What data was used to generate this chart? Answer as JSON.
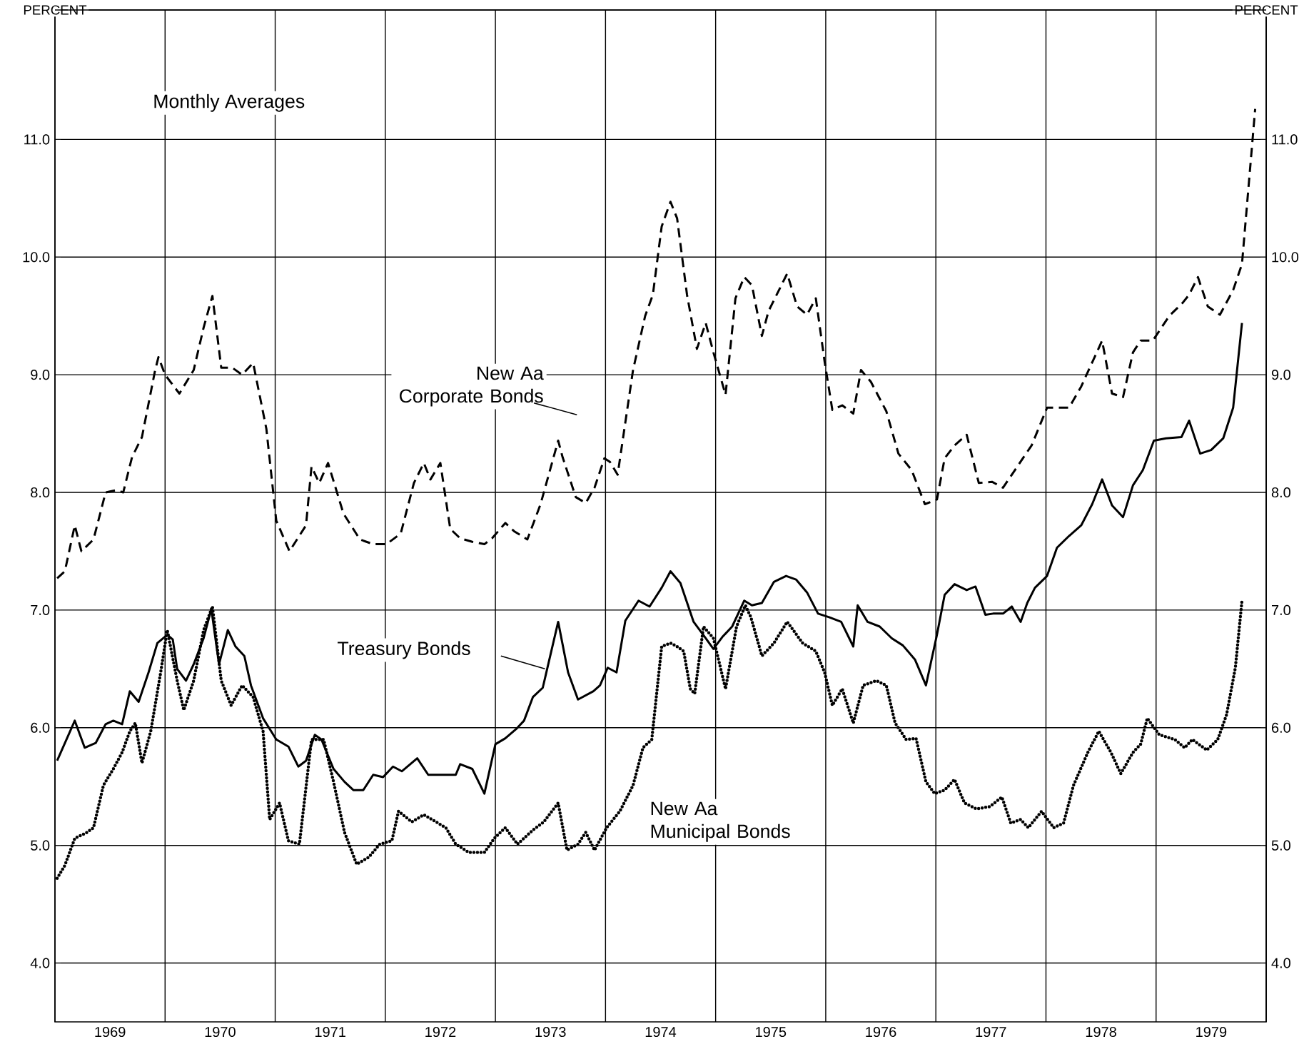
{
  "chart_data": {
    "type": "line",
    "ylabel": "PERCENT",
    "y2label": "PERCENT",
    "annotations": [
      "Monthly Averages"
    ],
    "xlim": [
      1969,
      1980
    ],
    "ylim": [
      3.5,
      12.1
    ],
    "y2lim": [
      3.5,
      12.1
    ],
    "xticks": [
      {
        "value": 1969,
        "label": null
      },
      {
        "value": 1969.5,
        "label": "1969"
      },
      {
        "value": 1970,
        "label": null
      },
      {
        "value": 1970.5,
        "label": "1970"
      },
      {
        "value": 1971,
        "label": null
      },
      {
        "value": 1971.5,
        "label": "1971"
      },
      {
        "value": 1972,
        "label": null
      },
      {
        "value": 1972.5,
        "label": "1972"
      },
      {
        "value": 1973,
        "label": null
      },
      {
        "value": 1973.5,
        "label": "1973"
      },
      {
        "value": 1974,
        "label": null
      },
      {
        "value": 1974.5,
        "label": "1974"
      },
      {
        "value": 1975,
        "label": null
      },
      {
        "value": 1975.5,
        "label": "1975"
      },
      {
        "value": 1976,
        "label": null
      },
      {
        "value": 1976.5,
        "label": "1976"
      },
      {
        "value": 1977,
        "label": null
      },
      {
        "value": 1977.5,
        "label": "1977"
      },
      {
        "value": 1978,
        "label": null
      },
      {
        "value": 1978.5,
        "label": "1978"
      },
      {
        "value": 1979,
        "label": null
      },
      {
        "value": 1979.5,
        "label": "1979"
      },
      {
        "value": 1980,
        "label": null
      }
    ],
    "yticks": [
      {
        "value": 4,
        "label": "4.0"
      },
      {
        "value": 5,
        "label": "5.0"
      },
      {
        "value": 6,
        "label": "6.0"
      },
      {
        "value": 7,
        "label": "7.0"
      },
      {
        "value": 8,
        "label": "8.0"
      },
      {
        "value": 9,
        "label": "9.0"
      },
      {
        "value": 10,
        "label": "10.0"
      },
      {
        "value": 11,
        "label": "11.0"
      }
    ],
    "y2ticks": [
      {
        "value": 4,
        "label": "4.0"
      },
      {
        "value": 5,
        "label": "5.0"
      },
      {
        "value": 6,
        "label": "6.0"
      },
      {
        "value": 7,
        "label": "7.0"
      },
      {
        "value": 8,
        "label": "8.0"
      },
      {
        "value": 9,
        "label": "9.0"
      },
      {
        "value": 10,
        "label": "10.0"
      },
      {
        "value": 11,
        "label": "11.0"
      }
    ],
    "grid": true,
    "series": [
      {
        "name": "New Aa Corporate Bonds",
        "color": "#000000",
        "line_style": "dashed",
        "x": [
          1969.02,
          1969.09,
          1969.18,
          1969.24,
          1969.35,
          1969.46,
          1969.56,
          1969.62,
          1969.7,
          1969.79,
          1969.91,
          1969.94,
          1970.0,
          1970.13,
          1970.26,
          1970.35,
          1970.43,
          1970.51,
          1970.61,
          1970.7,
          1970.8,
          1970.92,
          1971.01,
          1971.13,
          1971.28,
          1971.33,
          1971.4,
          1971.48,
          1971.62,
          1971.77,
          1971.89,
          1972.01,
          1972.14,
          1972.26,
          1972.35,
          1972.41,
          1972.5,
          1972.59,
          1972.68,
          1972.79,
          1972.9,
          1972.97,
          1973.09,
          1973.17,
          1973.29,
          1973.41,
          1973.57,
          1973.61,
          1973.73,
          1973.82,
          1973.9,
          1973.99,
          1974.04,
          1974.11,
          1974.25,
          1974.36,
          1974.43,
          1974.51,
          1974.59,
          1974.65,
          1974.74,
          1974.83,
          1974.91,
          1974.98,
          1975.09,
          1975.18,
          1975.26,
          1975.33,
          1975.42,
          1975.48,
          1975.65,
          1975.74,
          1975.83,
          1975.91,
          1975.99,
          1976.06,
          1976.15,
          1976.25,
          1976.32,
          1976.41,
          1976.55,
          1976.66,
          1976.78,
          1976.9,
          1977.01,
          1977.08,
          1977.17,
          1977.28,
          1977.39,
          1977.51,
          1977.61,
          1977.74,
          1977.87,
          1978.01,
          1978.21,
          1978.32,
          1978.51,
          1978.6,
          1978.7,
          1978.79,
          1978.86,
          1978.97,
          1979.12,
          1979.24,
          1979.3,
          1979.38,
          1979.47,
          1979.58,
          1979.7,
          1979.78,
          1979.9
        ],
        "values": [
          7.27,
          7.33,
          7.72,
          7.5,
          7.6,
          8.0,
          8.02,
          8.0,
          8.3,
          8.47,
          9.04,
          9.15,
          9.0,
          8.84,
          9.04,
          9.4,
          9.67,
          9.06,
          9.06,
          9.0,
          9.1,
          8.54,
          7.76,
          7.5,
          7.72,
          8.22,
          8.08,
          8.25,
          7.82,
          7.6,
          7.56,
          7.56,
          7.65,
          8.08,
          8.25,
          8.11,
          8.25,
          7.69,
          7.61,
          7.58,
          7.56,
          7.61,
          7.74,
          7.67,
          7.6,
          7.9,
          8.44,
          8.3,
          7.96,
          7.91,
          8.04,
          8.29,
          8.26,
          8.15,
          9.04,
          9.5,
          9.68,
          10.26,
          10.47,
          10.33,
          9.68,
          9.22,
          9.44,
          9.19,
          8.83,
          9.65,
          9.83,
          9.76,
          9.33,
          9.54,
          9.86,
          9.58,
          9.51,
          9.65,
          9.11,
          8.7,
          8.74,
          8.67,
          9.04,
          8.94,
          8.69,
          8.33,
          8.19,
          7.9,
          7.94,
          8.29,
          8.4,
          8.49,
          8.08,
          8.09,
          8.04,
          8.22,
          8.4,
          8.72,
          8.72,
          8.9,
          9.29,
          8.84,
          8.81,
          9.19,
          9.29,
          9.29,
          9.5,
          9.61,
          9.68,
          9.83,
          9.58,
          9.51,
          9.72,
          9.94,
          11.26
        ]
      },
      {
        "name": "Treasury Bonds",
        "color": "#000000",
        "line_style": "solid",
        "x": [
          1969.02,
          1969.18,
          1969.27,
          1969.37,
          1969.46,
          1969.53,
          1969.61,
          1969.68,
          1969.76,
          1969.85,
          1969.93,
          1970.02,
          1970.07,
          1970.11,
          1970.19,
          1970.26,
          1970.35,
          1970.42,
          1970.49,
          1970.57,
          1970.64,
          1970.72,
          1970.78,
          1970.89,
          1971.01,
          1971.12,
          1971.21,
          1971.28,
          1971.36,
          1971.42,
          1971.53,
          1971.63,
          1971.71,
          1971.8,
          1971.89,
          1971.98,
          1972.07,
          1972.15,
          1972.29,
          1972.39,
          1972.5,
          1972.64,
          1972.68,
          1972.79,
          1972.9,
          1973.0,
          1973.09,
          1973.19,
          1973.26,
          1973.34,
          1973.43,
          1973.57,
          1973.66,
          1973.75,
          1973.89,
          1973.95,
          1974.02,
          1974.1,
          1974.18,
          1974.3,
          1974.4,
          1974.51,
          1974.59,
          1974.68,
          1974.8,
          1974.91,
          1974.98,
          1975.06,
          1975.15,
          1975.26,
          1975.33,
          1975.42,
          1975.53,
          1975.64,
          1975.73,
          1975.83,
          1975.93,
          1976.03,
          1976.14,
          1976.25,
          1976.29,
          1976.38,
          1976.49,
          1976.6,
          1976.7,
          1976.81,
          1976.91,
          1977.01,
          1977.08,
          1977.17,
          1977.28,
          1977.36,
          1977.45,
          1977.52,
          1977.61,
          1977.69,
          1977.77,
          1977.83,
          1977.9,
          1978.01,
          1978.1,
          1978.21,
          1978.32,
          1978.42,
          1978.51,
          1978.6,
          1978.7,
          1978.79,
          1978.88,
          1978.98,
          1979.09,
          1979.23,
          1979.3,
          1979.4,
          1979.5,
          1979.61,
          1979.7,
          1979.78
        ],
        "values": [
          5.72,
          6.06,
          5.83,
          5.87,
          6.03,
          6.06,
          6.03,
          6.31,
          6.22,
          6.47,
          6.72,
          6.79,
          6.75,
          6.5,
          6.4,
          6.54,
          6.76,
          7.01,
          6.54,
          6.83,
          6.69,
          6.61,
          6.36,
          6.08,
          5.9,
          5.84,
          5.67,
          5.72,
          5.94,
          5.9,
          5.65,
          5.54,
          5.47,
          5.47,
          5.6,
          5.58,
          5.67,
          5.63,
          5.74,
          5.6,
          5.6,
          5.6,
          5.69,
          5.65,
          5.44,
          5.86,
          5.91,
          5.99,
          6.06,
          6.26,
          6.34,
          6.9,
          6.47,
          6.24,
          6.31,
          6.36,
          6.51,
          6.47,
          6.91,
          7.08,
          7.03,
          7.19,
          7.33,
          7.23,
          6.9,
          6.76,
          6.67,
          6.77,
          6.86,
          7.08,
          7.04,
          7.06,
          7.24,
          7.29,
          7.26,
          7.15,
          6.97,
          6.94,
          6.9,
          6.69,
          7.04,
          6.9,
          6.86,
          6.76,
          6.7,
          6.58,
          6.36,
          6.79,
          7.13,
          7.22,
          7.17,
          7.2,
          6.96,
          6.97,
          6.97,
          7.03,
          6.9,
          7.06,
          7.19,
          7.29,
          7.53,
          7.63,
          7.72,
          7.9,
          8.11,
          7.89,
          7.79,
          8.06,
          8.19,
          8.44,
          8.46,
          8.47,
          8.61,
          8.33,
          8.36,
          8.46,
          8.72,
          9.44
        ]
      },
      {
        "name": "New Aa Municipal Bonds",
        "color": "#000000",
        "line_style": "dotted",
        "x": [
          1969.02,
          1969.09,
          1969.18,
          1969.29,
          1969.35,
          1969.44,
          1969.53,
          1969.61,
          1969.68,
          1969.73,
          1969.79,
          1969.87,
          1969.96,
          1970.02,
          1970.11,
          1970.17,
          1970.26,
          1970.35,
          1970.43,
          1970.51,
          1970.6,
          1970.7,
          1970.8,
          1970.89,
          1970.95,
          1971.04,
          1971.12,
          1971.22,
          1971.33,
          1971.44,
          1971.53,
          1971.63,
          1971.74,
          1971.85,
          1971.95,
          1972.06,
          1972.12,
          1972.24,
          1972.35,
          1972.46,
          1972.55,
          1972.64,
          1972.76,
          1972.9,
          1972.99,
          1973.09,
          1973.2,
          1973.34,
          1973.44,
          1973.57,
          1973.65,
          1973.75,
          1973.82,
          1973.9,
          1974.01,
          1974.13,
          1974.25,
          1974.34,
          1974.42,
          1974.51,
          1974.59,
          1974.65,
          1974.71,
          1974.77,
          1974.81,
          1974.89,
          1974.98,
          1975.09,
          1975.19,
          1975.27,
          1975.32,
          1975.42,
          1975.53,
          1975.65,
          1975.79,
          1975.91,
          1975.99,
          1976.06,
          1976.15,
          1976.25,
          1976.34,
          1976.46,
          1976.55,
          1976.63,
          1976.73,
          1976.82,
          1976.91,
          1976.99,
          1977.08,
          1977.17,
          1977.26,
          1977.37,
          1977.49,
          1977.6,
          1977.68,
          1977.77,
          1977.84,
          1977.96,
          1978.07,
          1978.16,
          1978.25,
          1978.38,
          1978.48,
          1978.59,
          1978.68,
          1978.79,
          1978.86,
          1978.92,
          1979.03,
          1979.17,
          1979.26,
          1979.33,
          1979.46,
          1979.56,
          1979.64,
          1979.72,
          1979.78
        ],
        "values": [
          4.72,
          4.83,
          5.06,
          5.11,
          5.15,
          5.51,
          5.65,
          5.79,
          5.97,
          6.04,
          5.7,
          5.97,
          6.47,
          6.83,
          6.4,
          6.15,
          6.4,
          6.83,
          7.03,
          6.4,
          6.19,
          6.36,
          6.26,
          5.97,
          5.22,
          5.36,
          5.04,
          5.01,
          5.9,
          5.9,
          5.54,
          5.11,
          4.84,
          4.9,
          5.01,
          5.04,
          5.29,
          5.2,
          5.26,
          5.2,
          5.15,
          5.01,
          4.94,
          4.94,
          5.06,
          5.15,
          5.01,
          5.13,
          5.2,
          5.36,
          4.96,
          5.01,
          5.11,
          4.96,
          5.15,
          5.29,
          5.51,
          5.83,
          5.9,
          6.69,
          6.72,
          6.69,
          6.65,
          6.33,
          6.29,
          6.86,
          6.76,
          6.33,
          6.86,
          7.04,
          6.94,
          6.61,
          6.72,
          6.9,
          6.72,
          6.65,
          6.47,
          6.19,
          6.33,
          6.04,
          6.36,
          6.4,
          6.36,
          6.04,
          5.9,
          5.91,
          5.54,
          5.44,
          5.47,
          5.56,
          5.36,
          5.31,
          5.33,
          5.41,
          5.19,
          5.22,
          5.15,
          5.29,
          5.15,
          5.19,
          5.51,
          5.79,
          5.97,
          5.79,
          5.61,
          5.79,
          5.86,
          6.08,
          5.94,
          5.9,
          5.83,
          5.9,
          5.81,
          5.9,
          6.11,
          6.51,
          7.08
        ]
      }
    ]
  }
}
